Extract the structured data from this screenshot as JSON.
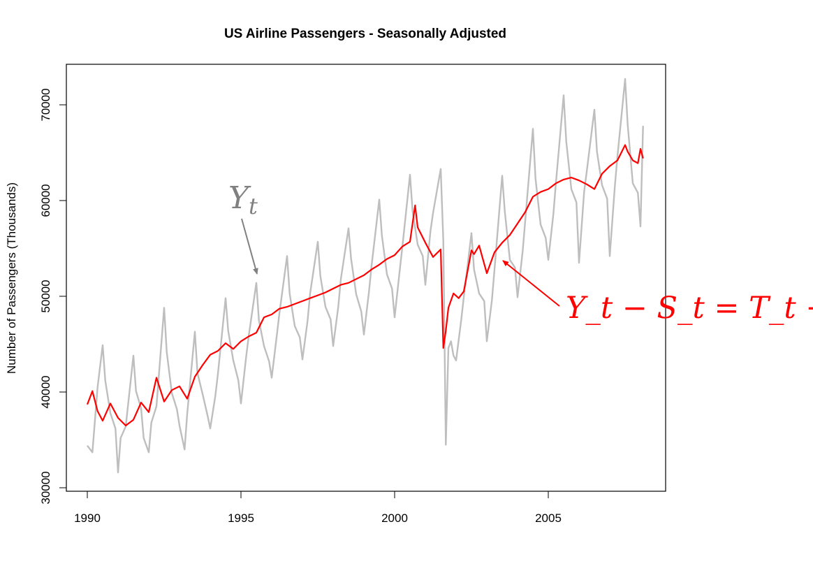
{
  "chart_data": {
    "type": "line",
    "title": "US Airline Passengers - Seasonally Adjusted",
    "xlabel": "",
    "ylabel": "Number of Passengers (Thousands)",
    "xlim": [
      1989.7,
      2008.8
    ],
    "ylim": [
      29600,
      74200
    ],
    "x_ticks": [
      1990,
      1995,
      2000,
      2005
    ],
    "x_tick_labels": [
      "1990",
      "1995",
      "2000",
      "2005"
    ],
    "y_ticks": [
      30000,
      40000,
      50000,
      60000,
      70000
    ],
    "y_tick_labels": [
      "30000",
      "40000",
      "50000",
      "60000",
      "70000"
    ],
    "grid": false,
    "legend": "none",
    "series": [
      {
        "key": "raw",
        "color": "#bebebe",
        "x": [
          1990.0,
          1990.167,
          1990.333,
          1990.5,
          1990.583,
          1990.75,
          1990.917,
          1991.0,
          1991.083,
          1991.25,
          1991.5,
          1991.583,
          1991.75,
          1991.833,
          1992.0,
          1992.083,
          1992.25,
          1992.5,
          1992.583,
          1992.75,
          1992.917,
          1993.0,
          1993.167,
          1993.25,
          1993.5,
          1993.583,
          1993.75,
          1993.917,
          1994.0,
          1994.167,
          1994.25,
          1994.5,
          1994.583,
          1994.75,
          1994.917,
          1995.0,
          1995.167,
          1995.25,
          1995.5,
          1995.583,
          1995.75,
          1995.917,
          1996.0,
          1996.167,
          1996.25,
          1996.5,
          1996.583,
          1996.75,
          1996.917,
          1997.0,
          1997.167,
          1997.25,
          1997.5,
          1997.583,
          1997.75,
          1997.917,
          1998.0,
          1998.167,
          1998.25,
          1998.5,
          1998.583,
          1998.75,
          1998.917,
          1999.0,
          1999.167,
          1999.25,
          1999.5,
          1999.583,
          1999.75,
          1999.917,
          2000.0,
          2000.167,
          2000.25,
          2000.5,
          2000.583,
          2000.75,
          2000.917,
          2001.0,
          2001.167,
          2001.25,
          2001.5,
          2001.583,
          2001.667,
          2001.75,
          2001.833,
          2001.917,
          2002.0,
          2002.167,
          2002.25,
          2002.5,
          2002.583,
          2002.75,
          2002.917,
          2003.0,
          2003.167,
          2003.25,
          2003.5,
          2003.583,
          2003.75,
          2003.917,
          2004.0,
          2004.167,
          2004.25,
          2004.5,
          2004.583,
          2004.75,
          2004.917,
          2005.0,
          2005.167,
          2005.25,
          2005.5,
          2005.583,
          2005.75,
          2005.917,
          2006.0,
          2006.167,
          2006.25,
          2006.5,
          2006.583,
          2006.75,
          2006.917,
          2007.0,
          2007.167,
          2007.25,
          2007.5,
          2007.583,
          2007.75,
          2007.917,
          2008.0,
          2008.083
        ],
        "values": [
          34400,
          33700,
          40500,
          44900,
          41200,
          37800,
          36200,
          31600,
          35200,
          36400,
          43800,
          40100,
          38300,
          35200,
          33700,
          36800,
          38500,
          48800,
          44200,
          39900,
          38200,
          36500,
          34000,
          37700,
          46300,
          42000,
          39800,
          37500,
          36200,
          39600,
          41900,
          49800,
          46400,
          43300,
          41200,
          38800,
          43600,
          45800,
          51400,
          47500,
          44800,
          43200,
          41500,
          45900,
          48200,
          54200,
          50300,
          46900,
          45700,
          43400,
          47400,
          50300,
          55700,
          52100,
          48900,
          47600,
          44800,
          48900,
          51800,
          57100,
          53900,
          50200,
          48400,
          46000,
          50500,
          53200,
          60100,
          56400,
          52300,
          50800,
          47800,
          52700,
          55100,
          62700,
          58900,
          55400,
          54200,
          51200,
          56800,
          58700,
          63300,
          55800,
          34500,
          44600,
          45300,
          43800,
          43300,
          47500,
          49900,
          56600,
          52800,
          50300,
          49500,
          45300,
          49600,
          52800,
          62600,
          58900,
          53800,
          53000,
          49900,
          54700,
          57900,
          67500,
          62300,
          57500,
          56100,
          53800,
          58600,
          61900,
          71000,
          66200,
          61200,
          59800,
          53500,
          60900,
          63000,
          69500,
          65100,
          61600,
          60200,
          54200,
          61500,
          64600,
          72700,
          67900,
          61800,
          60800,
          57300,
          67800
        ]
      },
      {
        "key": "adjusted",
        "color": "#ff0000",
        "x": [
          1990.0,
          1990.167,
          1990.333,
          1990.5,
          1990.75,
          1991.0,
          1991.25,
          1991.5,
          1991.75,
          1992.0,
          1992.25,
          1992.5,
          1992.75,
          1993.0,
          1993.25,
          1993.5,
          1993.75,
          1994.0,
          1994.25,
          1994.5,
          1994.75,
          1995.0,
          1995.25,
          1995.5,
          1995.75,
          1996.0,
          1996.25,
          1996.5,
          1996.75,
          1997.0,
          1997.25,
          1997.5,
          1997.75,
          1998.0,
          1998.25,
          1998.5,
          1998.75,
          1999.0,
          1999.25,
          1999.5,
          1999.75,
          2000.0,
          2000.25,
          2000.5,
          2000.667,
          2000.75,
          2001.0,
          2001.25,
          2001.5,
          2001.583,
          2001.667,
          2001.75,
          2001.917,
          2002.083,
          2002.25,
          2002.5,
          2002.583,
          2002.75,
          2003.0,
          2003.25,
          2003.5,
          2003.75,
          2004.0,
          2004.25,
          2004.5,
          2004.75,
          2005.0,
          2005.25,
          2005.5,
          2005.75,
          2006.0,
          2006.25,
          2006.5,
          2006.75,
          2007.0,
          2007.25,
          2007.5,
          2007.583,
          2007.75,
          2007.917,
          2008.0,
          2008.083
        ],
        "values": [
          38700,
          40100,
          38000,
          37000,
          38800,
          37300,
          36500,
          37100,
          38900,
          37900,
          41500,
          39000,
          40200,
          40600,
          39300,
          41600,
          42800,
          43900,
          44300,
          45100,
          44500,
          45300,
          45800,
          46200,
          47800,
          48100,
          48700,
          48900,
          49200,
          49500,
          49800,
          50100,
          50400,
          50800,
          51200,
          51400,
          51800,
          52200,
          52800,
          53300,
          53900,
          54300,
          55200,
          55700,
          59500,
          57200,
          55600,
          54100,
          54900,
          44600,
          46400,
          48800,
          50300,
          49800,
          50500,
          54800,
          54400,
          55300,
          52400,
          54600,
          55600,
          56400,
          57600,
          58800,
          60400,
          60900,
          61200,
          61800,
          62200,
          62400,
          62100,
          61700,
          61200,
          62800,
          63600,
          64200,
          65800,
          65100,
          64200,
          63900,
          65400,
          64400
        ]
      }
    ],
    "annotations": [
      {
        "key": "yt",
        "base": "Y",
        "sub": "t",
        "color": "#808080"
      },
      {
        "key": "formula",
        "text": "Y_t − S_t = T_t + E_t",
        "color": "#ff0000"
      }
    ]
  }
}
